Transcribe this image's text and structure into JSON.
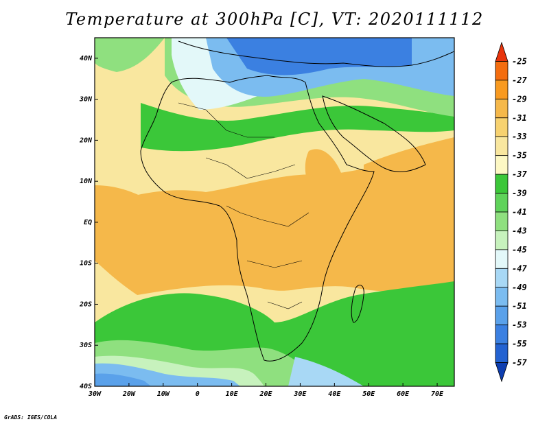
{
  "title": "Temperature at 300hPa [C], VT: 2020111112",
  "footer": "GrADS: IGES/COLA",
  "map": {
    "lon_range": [
      -30,
      75
    ],
    "lat_range": [
      -40,
      45
    ],
    "lon_ticks": [
      {
        "value": -30,
        "label": "30W"
      },
      {
        "value": -20,
        "label": "20W"
      },
      {
        "value": -10,
        "label": "10W"
      },
      {
        "value": 0,
        "label": "0"
      },
      {
        "value": 10,
        "label": "10E"
      },
      {
        "value": 20,
        "label": "20E"
      },
      {
        "value": 30,
        "label": "30E"
      },
      {
        "value": 40,
        "label": "40E"
      },
      {
        "value": 50,
        "label": "50E"
      },
      {
        "value": 60,
        "label": "60E"
      },
      {
        "value": 70,
        "label": "70E"
      }
    ],
    "lat_ticks": [
      {
        "value": 40,
        "label": "40N"
      },
      {
        "value": 30,
        "label": "30N"
      },
      {
        "value": 20,
        "label": "20N"
      },
      {
        "value": 10,
        "label": "10N"
      },
      {
        "value": 0,
        "label": "EQ"
      },
      {
        "value": -10,
        "label": "10S"
      },
      {
        "value": -20,
        "label": "20S"
      },
      {
        "value": -30,
        "label": "30S"
      },
      {
        "value": -40,
        "label": "40S"
      }
    ]
  },
  "colorbar": {
    "labels": [
      "-25",
      "-27",
      "-29",
      "-31",
      "-33",
      "-35",
      "-37",
      "-39",
      "-41",
      "-43",
      "-45",
      "-47",
      "-49",
      "-51",
      "-53",
      "-55",
      "-57"
    ],
    "colors": [
      "#e8340c",
      "#f46d0f",
      "#f89a20",
      "#f5b84a",
      "#f7d270",
      "#f9e79f",
      "#fdf8c4",
      "#3bc739",
      "#5fd35a",
      "#8fe07f",
      "#c7f2bd",
      "#e3f8f9",
      "#a8d8f5",
      "#7bbcf0",
      "#5aa1ea",
      "#3b80e1",
      "#2362d1",
      "#0e3eb0"
    ]
  }
}
